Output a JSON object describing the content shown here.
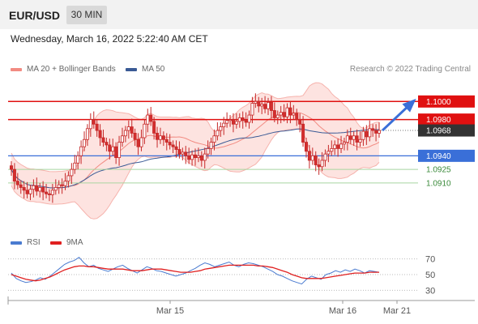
{
  "header": {
    "symbol": "EUR/USD",
    "timeframe": "30 MIN"
  },
  "datetime": "Wednesday, March 16, 2022 5:22:40 AM CET",
  "source": "Research © 2022 Trading Central",
  "legend_main": [
    {
      "label": "MA 20 + Bollinger Bands",
      "color": "#f28b82"
    },
    {
      "label": "MA 50",
      "color": "#3a5a95"
    }
  ],
  "legend_rsi": [
    {
      "label": "RSI",
      "color": "#4a7bd0"
    },
    {
      "label": "9MA",
      "color": "#e02020"
    }
  ],
  "colors": {
    "resistance": "#e01010",
    "support": "#3a6fd8",
    "target": "#3a8a3a",
    "bb_fill": "#fde3e0",
    "candle_up": "#ffffff",
    "candle_down": "#d32f2f",
    "outline": "#c62828",
    "current": "#333333",
    "arrow": "#3a6fd8"
  },
  "chart_data": [
    {
      "type": "candlestick",
      "title": "EUR/USD 30 MIN",
      "ylim": [
        1.0875,
        1.1045
      ],
      "x_ticks": [
        "Mar 15",
        "Mar 16",
        "Mar 21"
      ],
      "levels": [
        {
          "label": "1.1000",
          "value": 1.1,
          "kind": "resistance"
        },
        {
          "label": "1.0980",
          "value": 1.098,
          "kind": "resistance"
        },
        {
          "label": "1.0968",
          "value": 1.0968,
          "kind": "current"
        },
        {
          "label": "1.0940",
          "value": 1.094,
          "kind": "support"
        },
        {
          "label": "1.0925",
          "value": 1.0925,
          "kind": "target"
        },
        {
          "label": "1.0910",
          "value": 1.091,
          "kind": "target"
        }
      ],
      "forecast_arrow": {
        "from": 1.0968,
        "to": 1.1
      },
      "closes": [
        1.0925,
        1.0912,
        1.0908,
        1.0905,
        1.0902,
        1.0898,
        1.0903,
        1.0907,
        1.0901,
        1.0905,
        1.09,
        1.0898,
        1.0897,
        1.0902,
        1.0905,
        1.0908,
        1.0907,
        1.0912,
        1.0918,
        1.0925,
        1.0932,
        1.094,
        1.095,
        1.0958,
        1.097,
        1.098,
        1.0975,
        1.0968,
        1.096,
        1.0955,
        1.0952,
        1.0945,
        1.095,
        1.0938,
        1.0955,
        1.0962,
        1.0968,
        1.0972,
        1.0965,
        1.0958,
        1.095,
        1.096,
        1.0975,
        1.0985,
        1.0978,
        1.0965,
        1.0958,
        1.0962,
        1.0958,
        1.0955,
        1.0952,
        1.095,
        1.0947,
        1.0942,
        1.0944,
        1.094,
        1.0936,
        1.0941,
        1.0938,
        1.094,
        1.0935,
        1.0942,
        1.0948,
        1.0955,
        1.0962,
        1.0968,
        1.0972,
        1.0976,
        1.0979,
        1.098,
        1.0975,
        1.0978,
        1.0982,
        1.0979,
        1.0977,
        1.0985,
        1.0998,
        1.1,
        1.0995,
        1.0997,
        1.0992,
        1.0999,
        1.099,
        1.0982,
        1.0985,
        1.0988,
        1.0983,
        1.0993,
        1.0985,
        1.0987,
        1.098,
        1.0975,
        1.0955,
        1.0945,
        1.0935,
        1.094,
        1.093,
        1.0928,
        1.0935,
        1.0942,
        1.0945,
        1.0948,
        1.0952,
        1.0948,
        1.0953,
        1.0955,
        1.0962,
        1.0958,
        1.0962,
        1.0955,
        1.0958,
        1.0967,
        1.0961,
        1.097,
        1.0968,
        1.0965,
        1.0968
      ]
    },
    {
      "type": "line",
      "title": "RSI",
      "ylim": [
        20,
        80
      ],
      "y_ticks": [
        70,
        50,
        30
      ],
      "series": [
        {
          "name": "RSI",
          "values": [
            52,
            45,
            42,
            40,
            41,
            43,
            46,
            44,
            48,
            53,
            58,
            63,
            66,
            68,
            72,
            65,
            60,
            62,
            58,
            56,
            54,
            57,
            60,
            62,
            58,
            55,
            52,
            56,
            60,
            58,
            55,
            54,
            52,
            50,
            48,
            50,
            52,
            55,
            58,
            62,
            65,
            63,
            60,
            62,
            64,
            66,
            62,
            60,
            63,
            65,
            64,
            62,
            60,
            57,
            54,
            50,
            48,
            45,
            42,
            40,
            38,
            44,
            48,
            46,
            44,
            50,
            52,
            55,
            53,
            56,
            54,
            57,
            55,
            52,
            55,
            54,
            53
          ]
        },
        {
          "name": "9MA",
          "values": [
            50,
            48,
            46,
            44,
            43,
            42,
            43,
            45,
            47,
            50,
            53,
            56,
            58,
            60,
            61,
            61,
            60,
            60,
            59,
            58,
            57,
            57,
            57,
            57,
            56,
            55,
            55,
            55,
            56,
            57,
            57,
            57,
            56,
            55,
            54,
            53,
            53,
            53,
            54,
            55,
            57,
            58,
            59,
            60,
            61,
            62,
            62,
            62,
            62,
            62,
            62,
            61,
            61,
            60,
            59,
            57,
            55,
            53,
            50,
            48,
            46,
            45,
            45,
            45,
            45,
            46,
            47,
            48,
            49,
            50,
            51,
            52,
            52,
            52,
            53,
            53,
            53
          ]
        }
      ]
    }
  ]
}
